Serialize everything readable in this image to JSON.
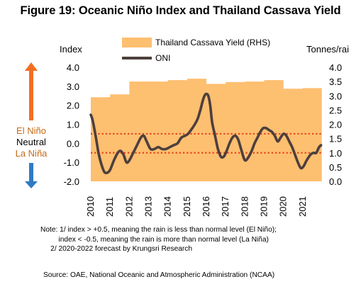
{
  "title": "Figure 19: Oceanic Niño Index and Thailand Cassava Yield",
  "left_axis_label": "Index",
  "right_axis_label": "Tonnes/rai",
  "legend": [
    "Thailand Cassava Yield (RHS)",
    "ONI"
  ],
  "side_labels": {
    "el_nino": "El Niño",
    "neutral": "Neutral",
    "la_nina": "La Niña"
  },
  "notes": [
    "Note: 1/ index > +0.5, meaning the rain is less than normal level (El Niño);",
    "         index < -0.5, meaning the rain is more than normal level (La Niña)",
    "     2/ 2020-2022 forecast by Krungsri Research"
  ],
  "source": "Source: OAE, National Oceanic and Atmospheric Administration (NCAA)",
  "colors": {
    "area": "#fdbf70",
    "oni_line": "#4d3f3d",
    "threshold": "#e8421b",
    "el_nino_arrow": "#f26f22",
    "la_nina_arrow": "#2f7ac4",
    "side_text": "#c46a14"
  },
  "chart_data": {
    "type": "area+line",
    "title": "Figure 19: Oceanic Niño Index and Thailand Cassava Yield",
    "left_axis": {
      "label": "Index",
      "min": -2.0,
      "max": 4.0,
      "ticks": [
        "-2.0",
        "-1.0",
        "0.0",
        "1.0",
        "2.0",
        "3.0",
        "4.0"
      ]
    },
    "right_axis": {
      "label": "Tonnes/rai",
      "min": 0.0,
      "max": 4.0,
      "ticks": [
        "0.0",
        "0.5",
        "1.0",
        "1.5",
        "2.0",
        "2.5",
        "3.0",
        "3.5",
        "4.0"
      ]
    },
    "x_ticks": [
      "2010",
      "2011",
      "2012",
      "2013",
      "2014",
      "2015",
      "2016",
      "2017",
      "2018",
      "2019",
      "2020",
      "2021"
    ],
    "x_range": [
      2010,
      2022
    ],
    "thresholds": [
      0.5,
      -0.5
    ],
    "series": [
      {
        "name": "Thailand Cassava Yield (RHS)",
        "type": "area",
        "axis": "right",
        "points": [
          [
            2010.0,
            2.95
          ],
          [
            2011.0,
            3.05
          ],
          [
            2012.0,
            3.5
          ],
          [
            2013.0,
            3.5
          ],
          [
            2014.0,
            3.55
          ],
          [
            2015.0,
            3.6
          ],
          [
            2016.0,
            3.42
          ],
          [
            2017.0,
            3.48
          ],
          [
            2018.0,
            3.5
          ],
          [
            2019.0,
            3.55
          ],
          [
            2020.0,
            3.25
          ],
          [
            2021.0,
            3.27
          ],
          [
            2021.99,
            3.27
          ]
        ]
      },
      {
        "name": "ONI",
        "type": "line",
        "axis": "left",
        "points": [
          [
            2010.0,
            1.5
          ],
          [
            2010.1,
            1.2
          ],
          [
            2010.25,
            0.4
          ],
          [
            2010.4,
            -0.5
          ],
          [
            2010.55,
            -1.1
          ],
          [
            2010.7,
            -1.5
          ],
          [
            2010.85,
            -1.55
          ],
          [
            2011.0,
            -1.4
          ],
          [
            2011.2,
            -0.9
          ],
          [
            2011.4,
            -0.5
          ],
          [
            2011.55,
            -0.4
          ],
          [
            2011.7,
            -0.6
          ],
          [
            2011.85,
            -1.0
          ],
          [
            2012.0,
            -0.9
          ],
          [
            2012.2,
            -0.5
          ],
          [
            2012.4,
            -0.1
          ],
          [
            2012.6,
            0.3
          ],
          [
            2012.75,
            0.4
          ],
          [
            2012.9,
            0.1
          ],
          [
            2013.1,
            -0.3
          ],
          [
            2013.3,
            -0.3
          ],
          [
            2013.5,
            -0.2
          ],
          [
            2013.7,
            -0.3
          ],
          [
            2013.9,
            -0.3
          ],
          [
            2014.1,
            -0.2
          ],
          [
            2014.3,
            -0.1
          ],
          [
            2014.5,
            0.0
          ],
          [
            2014.7,
            0.3
          ],
          [
            2014.9,
            0.4
          ],
          [
            2015.05,
            0.5
          ],
          [
            2015.2,
            0.7
          ],
          [
            2015.4,
            1.0
          ],
          [
            2015.55,
            1.3
          ],
          [
            2015.7,
            1.8
          ],
          [
            2015.8,
            2.2
          ],
          [
            2015.9,
            2.5
          ],
          [
            2016.0,
            2.6
          ],
          [
            2016.1,
            2.5
          ],
          [
            2016.2,
            2.0
          ],
          [
            2016.3,
            1.1
          ],
          [
            2016.45,
            0.4
          ],
          [
            2016.6,
            -0.3
          ],
          [
            2016.75,
            -0.7
          ],
          [
            2016.9,
            -0.7
          ],
          [
            2017.05,
            -0.4
          ],
          [
            2017.2,
            0.0
          ],
          [
            2017.35,
            0.3
          ],
          [
            2017.5,
            0.4
          ],
          [
            2017.65,
            0.2
          ],
          [
            2017.8,
            -0.3
          ],
          [
            2017.95,
            -0.8
          ],
          [
            2018.05,
            -0.9
          ],
          [
            2018.2,
            -0.7
          ],
          [
            2018.35,
            -0.4
          ],
          [
            2018.5,
            0.0
          ],
          [
            2018.65,
            0.3
          ],
          [
            2018.8,
            0.6
          ],
          [
            2018.95,
            0.8
          ],
          [
            2019.1,
            0.8
          ],
          [
            2019.25,
            0.7
          ],
          [
            2019.4,
            0.6
          ],
          [
            2019.55,
            0.4
          ],
          [
            2019.7,
            0.1
          ],
          [
            2019.85,
            0.3
          ],
          [
            2020.0,
            0.5
          ],
          [
            2020.15,
            0.4
          ],
          [
            2020.3,
            0.1
          ],
          [
            2020.45,
            -0.2
          ],
          [
            2020.6,
            -0.6
          ],
          [
            2020.75,
            -1.0
          ],
          [
            2020.9,
            -1.3
          ],
          [
            2021.05,
            -1.2
          ],
          [
            2021.2,
            -0.9
          ],
          [
            2021.4,
            -0.6
          ],
          [
            2021.55,
            -0.5
          ],
          [
            2021.7,
            -0.5
          ],
          [
            2021.85,
            -0.2
          ],
          [
            2021.95,
            -0.1
          ]
        ]
      }
    ]
  }
}
